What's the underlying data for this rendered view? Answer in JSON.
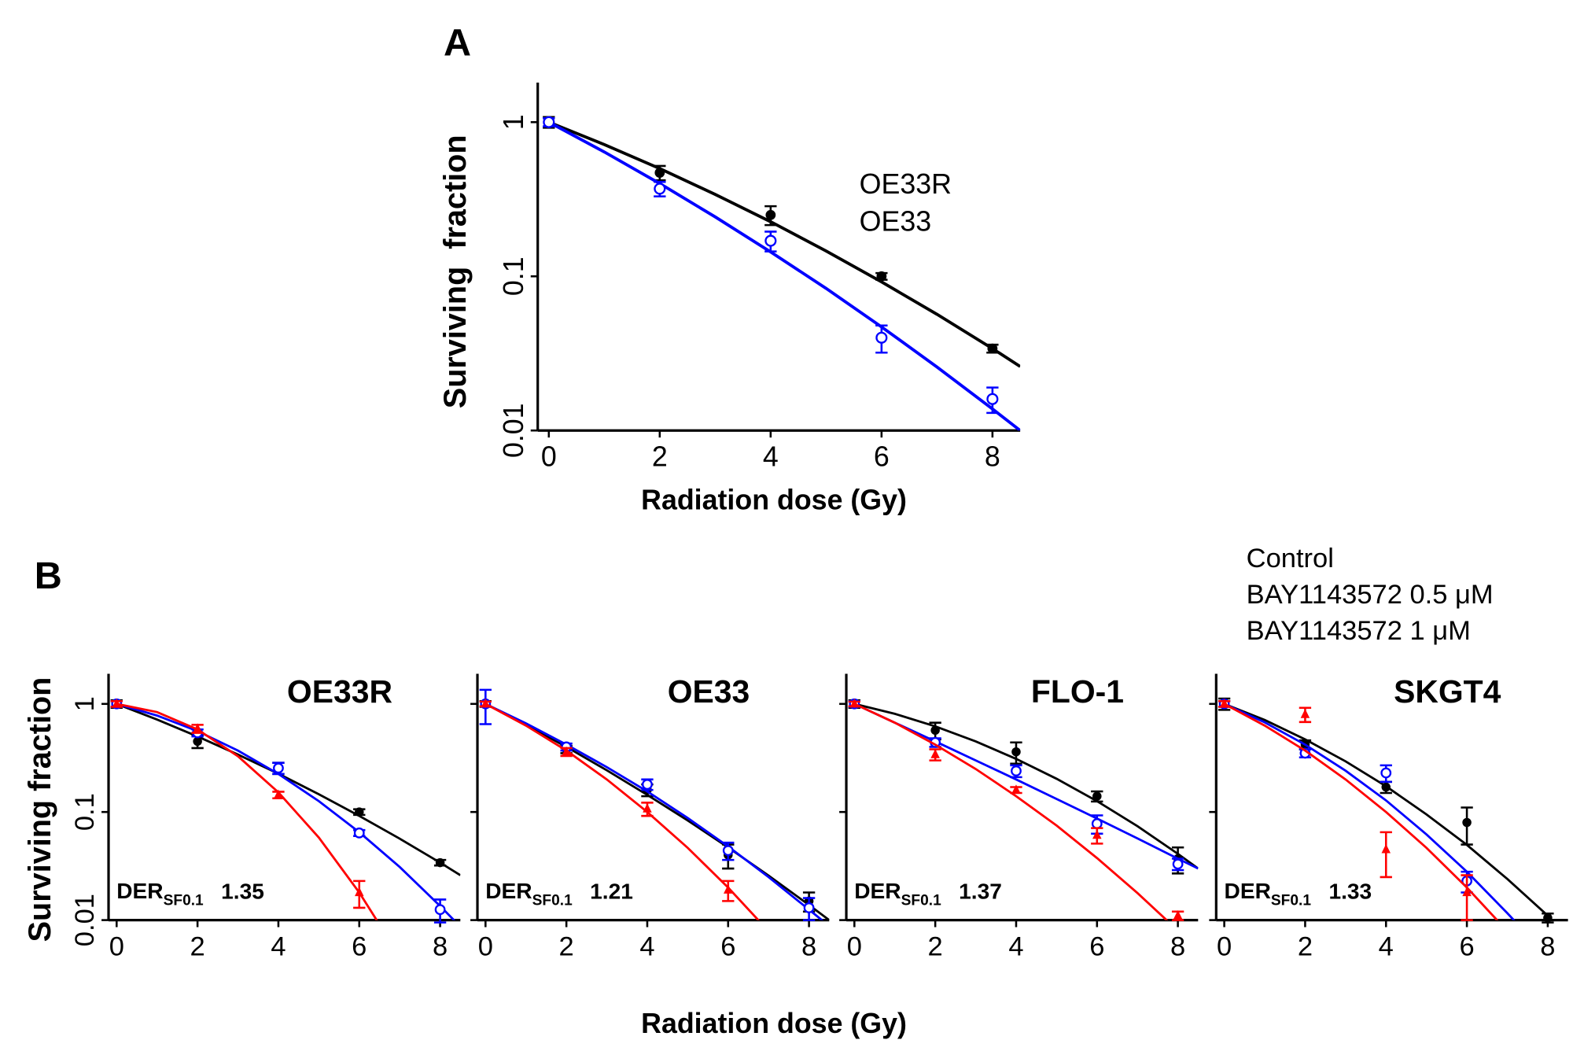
{
  "chart_data": [
    {
      "type": "line",
      "label": "A",
      "ylabel": "Surviving  fraction",
      "xlabel": "Radiation dose (Gy)",
      "log_y": true,
      "x": [
        0,
        2,
        4,
        6,
        8
      ],
      "xlim": [
        -0.2,
        8.5
      ],
      "xticks": [
        0,
        2,
        4,
        6,
        8
      ],
      "ylim": [
        0.01,
        1.6
      ],
      "yticks": [
        1,
        0.1,
        0.01
      ],
      "series": [
        {
          "name": "OE33R",
          "color": "#000000",
          "marker": "filled-circle",
          "values": [
            1,
            0.47,
            0.25,
            0.1,
            0.034
          ],
          "errors": [
            0.08,
            0.05,
            0.035,
            0.005,
            0.002
          ],
          "fit_x": [
            0,
            1,
            2,
            3,
            4,
            5,
            6,
            7,
            8,
            8.5
          ],
          "fit_values": [
            1,
            0.716,
            0.5,
            0.34,
            0.226,
            0.146,
            0.092,
            0.0567,
            0.034,
            0.026
          ]
        },
        {
          "name": "OE33",
          "color": "#0000ff",
          "marker": "open-circle",
          "values": [
            1,
            0.37,
            0.17,
            0.04,
            0.016
          ],
          "errors": [
            0.06,
            0.04,
            0.025,
            0.008,
            0.003
          ],
          "fit_x": [
            0,
            1,
            2,
            3,
            4,
            5,
            6,
            7,
            8,
            8.5
          ],
          "fit_values": [
            1,
            0.641,
            0.4,
            0.243,
            0.144,
            0.0835,
            0.047,
            0.0258,
            0.0138,
            0.01
          ]
        }
      ]
    },
    {
      "type": "line",
      "label": "B",
      "ylabel": "Surviving fraction",
      "xlabel": "Radiation dose (Gy)",
      "log_y": true,
      "x": [
        0,
        2,
        4,
        6,
        8
      ],
      "xlim": [
        -0.2,
        8.5
      ],
      "xticks": [
        0,
        2,
        4,
        6,
        8
      ],
      "ylim": [
        0.01,
        1.6
      ],
      "yticks": [
        1,
        0.1,
        0.01
      ],
      "legend": [
        {
          "name": "Control",
          "color": "#000000",
          "marker": "filled-circle"
        },
        {
          "name": "BAY1143572 0.5 μM",
          "color": "#0000ff",
          "marker": "open-circle"
        },
        {
          "name": "BAY1143572 1 μM",
          "color": "#ff0000",
          "marker": "filled-triangle"
        }
      ],
      "panels": [
        {
          "title": "OE33R",
          "der_label": "DER",
          "der_sub": "SF0.1",
          "der": 1.35,
          "series": [
            {
              "values": [
                1,
                0.45,
                0.255,
                0.1,
                0.034
              ],
              "errors": [
                0.08,
                0.06,
                0.03,
                0.006,
                0.002
              ],
              "fit_x": [
                0,
                1,
                2,
                3,
                4,
                5,
                6,
                7,
                8,
                8.5
              ],
              "fit_values": [
                1,
                0.716,
                0.5,
                0.34,
                0.226,
                0.146,
                0.092,
                0.0567,
                0.034,
                0.026
              ]
            },
            {
              "values": [
                1,
                0.54,
                0.255,
                0.064,
                0.0125
              ],
              "errors": [
                0.06,
                0.04,
                0.03,
                0.004,
                0.003
              ],
              "fit_x": [
                0,
                1,
                2,
                3,
                4,
                5,
                6,
                7,
                8,
                8.5
              ],
              "fit_values": [
                1,
                0.78,
                0.56,
                0.37,
                0.225,
                0.126,
                0.065,
                0.031,
                0.0135,
                0.0087
              ]
            },
            {
              "values": [
                1,
                0.59,
                0.144,
                0.018,
                null
              ],
              "errors": [
                0.06,
                0.05,
                0.01,
                0.005,
                null
              ],
              "fit_x": [
                0,
                1,
                2,
                3,
                4,
                5,
                6,
                7
              ],
              "fit_values": [
                1,
                0.84,
                0.58,
                0.328,
                0.152,
                0.058,
                0.018,
                0.0046
              ]
            }
          ]
        },
        {
          "title": "OE33",
          "der_label": "DER",
          "der_sub": "SF0.1",
          "der": 1.21,
          "series": [
            {
              "values": [
                1,
                0.38,
                0.16,
                0.04,
                0.015
              ],
              "errors": [
                0.06,
                0.03,
                0.02,
                0.01,
                0.003
              ],
              "fit_x": [
                0,
                1,
                2,
                3,
                4,
                5,
                6,
                7,
                8,
                8.5
              ],
              "fit_values": [
                1,
                0.641,
                0.4,
                0.243,
                0.144,
                0.0835,
                0.047,
                0.0258,
                0.0138,
                0.01
              ]
            },
            {
              "values": [
                1,
                0.4,
                0.18,
                0.044,
                0.013
              ],
              "errors": [
                0.35,
                0.03,
                0.02,
                0.008,
                0.003
              ],
              "fit_x": [
                0,
                1,
                2,
                3,
                4,
                5,
                6,
                7,
                8,
                8.5
              ],
              "fit_values": [
                1,
                0.66,
                0.42,
                0.26,
                0.155,
                0.088,
                0.048,
                0.025,
                0.0125,
                0.0088
              ]
            },
            {
              "values": [
                1,
                0.36,
                0.107,
                0.019,
                null
              ],
              "errors": [
                0.05,
                0.03,
                0.015,
                0.004,
                null
              ],
              "fit_x": [
                0,
                1,
                2,
                3,
                4,
                5,
                6,
                7
              ],
              "fit_values": [
                1,
                0.63,
                0.37,
                0.2,
                0.1,
                0.0466,
                0.02,
                0.0079
              ]
            }
          ]
        },
        {
          "title": "FLO-1",
          "der_label": "DER",
          "der_sub": "SF0.1",
          "der": 1.37,
          "series": [
            {
              "values": [
                1,
                0.57,
                0.36,
                0.14,
                0.037
              ],
              "errors": [
                0.08,
                0.1,
                0.08,
                0.015,
                0.01
              ],
              "fit_x": [
                0,
                1,
                2,
                3,
                4,
                5,
                6,
                7,
                8,
                8.5
              ],
              "fit_values": [
                1,
                0.81,
                0.62,
                0.45,
                0.31,
                0.203,
                0.126,
                0.074,
                0.041,
                0.03
              ]
            },
            {
              "values": [
                1,
                0.44,
                0.24,
                0.078,
                0.033
              ],
              "errors": [
                0.06,
                0.04,
                0.03,
                0.015,
                0.004
              ],
              "fit_x": [
                0,
                1,
                2,
                3,
                4,
                5,
                6,
                7,
                8,
                8.5
              ],
              "fit_values": [
                1,
                0.67,
                0.45,
                0.3,
                0.2,
                0.132,
                0.087,
                0.057,
                0.037,
                0.03
              ]
            },
            {
              "values": [
                1,
                0.34,
                0.16,
                0.061,
                0.011
              ],
              "errors": [
                0.05,
                0.04,
                0.01,
                0.01,
                0.001
              ],
              "fit_x": [
                0,
                1,
                2,
                3,
                4,
                5,
                6,
                7,
                8
              ],
              "fit_values": [
                1,
                0.67,
                0.42,
                0.25,
                0.14,
                0.075,
                0.0375,
                0.0178,
                0.008
              ]
            }
          ]
        },
        {
          "title": "SKGT4",
          "der_label": "DER",
          "der_sub": "SF0.1",
          "der": 1.33,
          "series": [
            {
              "values": [
                1,
                0.42,
                0.17,
                0.08,
                0.0105
              ],
              "errors": [
                0.12,
                0.04,
                0.02,
                0.03,
                0.001
              ],
              "fit_x": [
                0,
                1,
                2,
                3,
                4,
                5,
                6,
                7,
                8
              ],
              "fit_values": [
                1,
                0.71,
                0.47,
                0.294,
                0.173,
                0.095,
                0.0496,
                0.024,
                0.011
              ]
            },
            {
              "values": [
                1,
                0.35,
                0.23,
                0.023,
                null
              ],
              "errors": [
                0.06,
                0.03,
                0.04,
                0.005,
                null
              ],
              "fit_x": [
                0,
                1,
                2,
                3,
                4,
                5,
                6,
                7,
                7.5
              ],
              "fit_values": [
                1,
                0.675,
                0.42,
                0.241,
                0.128,
                0.062,
                0.028,
                0.0116,
                0.0073
              ]
            },
            {
              "values": [
                1,
                0.8,
                0.045,
                0.018,
                null
              ],
              "errors": [
                0.06,
                0.12,
                0.02,
                0.008,
                null
              ],
              "fit_x": [
                0,
                1,
                2,
                3,
                4,
                5,
                6,
                7
              ],
              "fit_values": [
                1,
                0.63,
                0.37,
                0.2,
                0.1,
                0.0466,
                0.02,
                0.0079
              ]
            }
          ]
        }
      ]
    }
  ]
}
